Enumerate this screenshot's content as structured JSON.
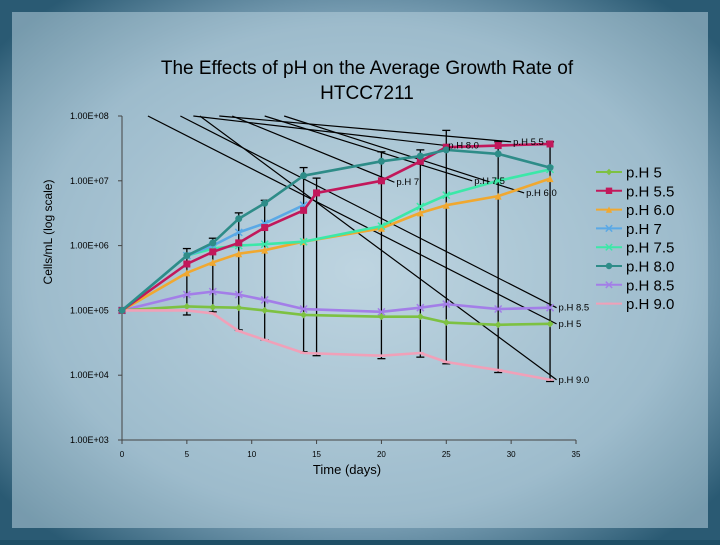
{
  "chart_data": {
    "type": "line",
    "title": "The Effects of pH on the Average Growth Rate of HTCC7211",
    "title_lines": [
      "The Effects of pH on the Average Growth Rate of",
      "HTCC7211"
    ],
    "xlabel": "Time (days)",
    "ylabel": "Cells/mL (log scale)",
    "xlim": [
      0,
      35
    ],
    "ylim": [
      1000,
      100000000
    ],
    "yscale": "log",
    "x_ticks": [
      0,
      5,
      10,
      15,
      20,
      25,
      30,
      35
    ],
    "x_tick_labels": [
      "0",
      "5",
      "10",
      "15",
      "20",
      "25",
      "30",
      "35"
    ],
    "y_ticks": [
      1000,
      10000,
      100000,
      1000000,
      10000000,
      100000000
    ],
    "y_tick_labels": [
      "1.00E+03",
      "1.00E+04",
      "1.00E+05",
      "1.00E+06",
      "1.00E+07",
      "1.00E+08"
    ],
    "legend_position": "right",
    "series": [
      {
        "name": "pH 5",
        "label": "p.H 5",
        "color": "#7dc142",
        "marker": "diamond",
        "x": [
          0,
          5,
          7,
          9,
          11,
          14,
          20,
          23,
          25,
          29,
          33
        ],
        "y": [
          100000,
          115000,
          112000,
          110000,
          100000,
          85000,
          80000,
          80000,
          65000,
          60000,
          62000
        ]
      },
      {
        "name": "pH 5.5",
        "label": "p.H 5.5",
        "color": "#c2185b",
        "marker": "square",
        "x": [
          0,
          5,
          7,
          9,
          11,
          14,
          15,
          20,
          23,
          25,
          29,
          33
        ],
        "y": [
          100000,
          520000,
          800000,
          1100000,
          1900000,
          3500000,
          6500000,
          10000000,
          20000000,
          33000000,
          35000000,
          37000000
        ]
      },
      {
        "name": "pH 6.0",
        "label": "p.H 6.0",
        "color": "#f0a830",
        "marker": "triangle",
        "x": [
          0,
          5,
          7,
          9,
          11,
          14,
          20,
          23,
          25,
          29,
          33
        ],
        "y": [
          100000,
          380000,
          550000,
          750000,
          850000,
          1150000,
          1850000,
          3200000,
          4200000,
          5800000,
          10800000
        ]
      },
      {
        "name": "pH 7",
        "label": "p.H 7",
        "color": "#5aa9e6",
        "marker": "x",
        "x": [
          0,
          5,
          7,
          9,
          11,
          14
        ],
        "y": [
          100000,
          700000,
          1000000,
          1600000,
          2200000,
          4200000
        ]
      },
      {
        "name": "pH 7.5",
        "label": "p.H 7.5",
        "color": "#3ce8a8",
        "marker": "x",
        "x": [
          0,
          5,
          7,
          9,
          11,
          14,
          20,
          23,
          25,
          29,
          33
        ],
        "y": [
          100000,
          700000,
          900000,
          1000000,
          1050000,
          1150000,
          2000000,
          4000000,
          6000000,
          10000000,
          15000000
        ]
      },
      {
        "name": "pH 8.0",
        "label": "p.H 8.0",
        "color": "#2e8c88",
        "marker": "circle",
        "x": [
          0,
          5,
          7,
          9,
          11,
          14,
          20,
          23,
          25,
          29,
          33
        ],
        "y": [
          100000,
          700000,
          1100000,
          2600000,
          4500000,
          12000000,
          20000000,
          24000000,
          30000000,
          26000000,
          16000000
        ]
      },
      {
        "name": "pH 8.5",
        "label": "p.H 8.5",
        "color": "#a37ee8",
        "marker": "x",
        "x": [
          0,
          5,
          7,
          9,
          11,
          14,
          20,
          23,
          25,
          29,
          33
        ],
        "y": [
          100000,
          175000,
          195000,
          175000,
          145000,
          105000,
          95000,
          110000,
          125000,
          105000,
          110000
        ]
      },
      {
        "name": "pH 9.0",
        "label": "p.H 9.0",
        "color": "#f0a0b8",
        "marker": "dash",
        "x": [
          0,
          5,
          7,
          9,
          11,
          14,
          20,
          23,
          25,
          29,
          33
        ],
        "y": [
          100000,
          100000,
          90000,
          48000,
          35000,
          22000,
          20000,
          22000,
          16000,
          12000,
          8500
        ]
      }
    ],
    "error_bars": [
      {
        "x": 5,
        "low": 85000,
        "high": 900000
      },
      {
        "x": 7,
        "low": 95000,
        "high": 1300000
      },
      {
        "x": 9,
        "low": 50000,
        "high": 3200000
      },
      {
        "x": 11,
        "low": 35000,
        "high": 5000000
      },
      {
        "x": 14,
        "low": 23000,
        "high": 16000000
      },
      {
        "x": 15,
        "low": 20000,
        "high": 11000000
      },
      {
        "x": 20,
        "low": 18000,
        "high": 28000000
      },
      {
        "x": 23,
        "low": 19000,
        "high": 30000000
      },
      {
        "x": 25,
        "low": 15000,
        "high": 60000000
      },
      {
        "x": 29,
        "low": 11000,
        "high": 40000000
      },
      {
        "x": 33,
        "low": 8000,
        "high": 40000000
      }
    ],
    "annotations": [
      {
        "text": "p.H 8.0",
        "x": 25,
        "y": 35000000,
        "guide_from": [
          5.5,
          100000000
        ]
      },
      {
        "text": "p.H 5.5",
        "x": 30,
        "y": 40000000,
        "guide_from": [
          7.5,
          100000000
        ]
      },
      {
        "text": "p.H 7",
        "x": 21,
        "y": 9500000,
        "guide_from": [
          8.5,
          100000000
        ]
      },
      {
        "text": "p.H 7.5",
        "x": 27,
        "y": 10000000,
        "guide_from": [
          11,
          100000000
        ]
      },
      {
        "text": "p.H 6.0",
        "x": 31,
        "y": 6500000,
        "guide_from": [
          12.5,
          100000000
        ]
      },
      {
        "text": "p.H 8.5",
        "x": 33.5,
        "y": 110000,
        "guide_from": [
          4.5,
          100000000
        ]
      },
      {
        "text": "p.H 5",
        "x": 33.5,
        "y": 62000,
        "guide_from": [
          2,
          100000000
        ]
      },
      {
        "text": "p.H 9.0",
        "x": 33.5,
        "y": 8500,
        "guide_from": [
          6,
          100000000
        ]
      }
    ]
  }
}
